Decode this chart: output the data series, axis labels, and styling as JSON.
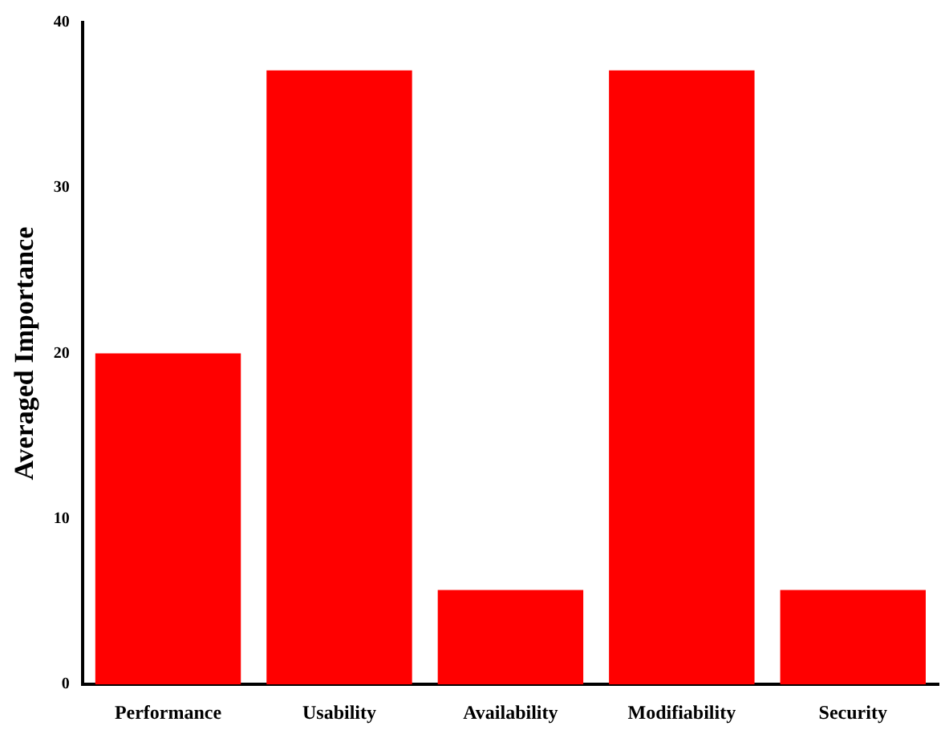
{
  "chart_data": {
    "type": "bar",
    "ylabel": "Averaged Importance",
    "categories": [
      "Performance",
      "Usability",
      "Availability",
      "Modifiability",
      "Security"
    ],
    "values": [
      20,
      37.1,
      5.7,
      37.1,
      5.7
    ],
    "color": "#ff0000",
    "ylim": [
      0,
      40
    ],
    "yticks": [
      0,
      10,
      20,
      30,
      40
    ],
    "grid": false,
    "legend": false
  }
}
